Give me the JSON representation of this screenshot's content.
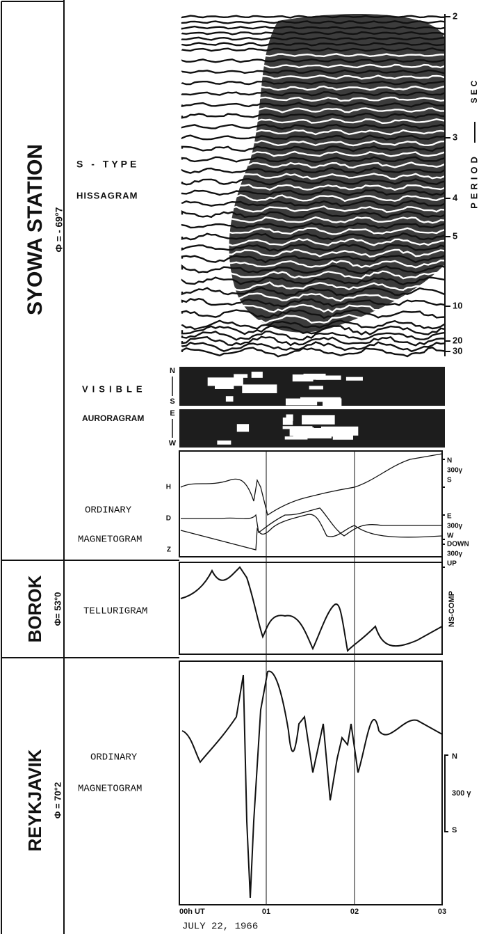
{
  "stations": [
    {
      "name": "SYOWA STATION",
      "coord": "Φ = - 69°7"
    },
    {
      "name": "BOROK",
      "coord": "Φ= 53°0"
    },
    {
      "name": "REYKJAVIK",
      "coord": "Φ = 70°2"
    }
  ],
  "hissagram": {
    "label1": "S - TYPE",
    "label2": "HISSAGRAM",
    "axis_title": "PERIOD",
    "axis_unit": "SEC",
    "ticks": [
      "2",
      "3",
      "4",
      "5",
      "10",
      "20",
      "30"
    ]
  },
  "auroragram": {
    "label1": "VISIBLE",
    "label2": "AURORAGRAM",
    "top_dirs": [
      "N",
      "S"
    ],
    "bottom_dirs": [
      "E",
      "W"
    ]
  },
  "syowa_magnetogram": {
    "label1": "ORDINARY",
    "label2": "MAGNETOGRAM",
    "components": [
      "H",
      "D",
      "Z"
    ],
    "scales": [
      [
        "N",
        "300γ",
        "S"
      ],
      [
        "E",
        "300γ",
        "W"
      ],
      [
        "DOWN",
        "300γ",
        "UP"
      ]
    ]
  },
  "borok": {
    "label": "TELLURIGRAM",
    "scale": "NS-COMP"
  },
  "reykjavik": {
    "label1": "ORDINARY",
    "label2": "MAGNETOGRAM",
    "scale": [
      "N",
      "300 γ",
      "S"
    ]
  },
  "time_axis": {
    "ticks": [
      "00h UT",
      "01",
      "02",
      "03"
    ],
    "date": "JULY 22, 1966"
  }
}
